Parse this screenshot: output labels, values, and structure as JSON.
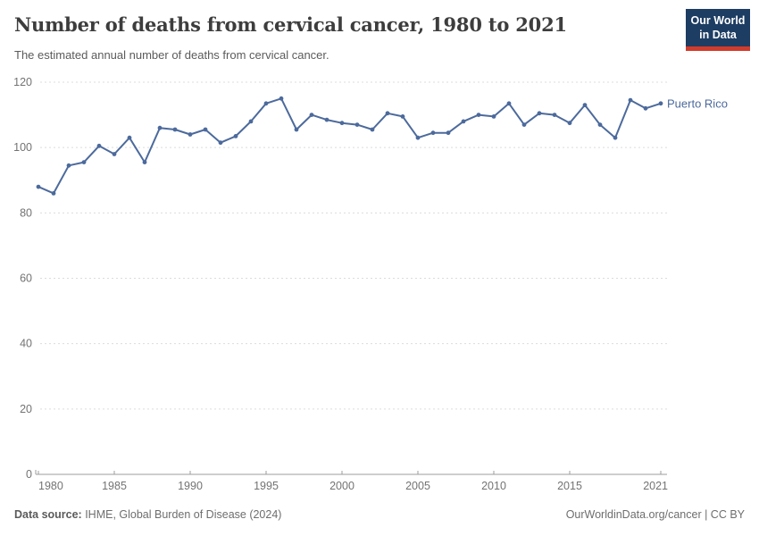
{
  "header": {
    "title": "Number of deaths from cervical cancer, 1980 to 2021",
    "subtitle": "The estimated annual number of deaths from cervical cancer.",
    "logo": {
      "line1": "Our World",
      "line2": "in Data"
    }
  },
  "chart_data": {
    "type": "line",
    "title": "Number of deaths from cervical cancer, 1980 to 2021",
    "xlabel": "",
    "ylabel": "",
    "xlim": [
      1980,
      2021
    ],
    "ylim": [
      0,
      120
    ],
    "grid": "horizontal-dashed",
    "legend_position": "end-of-line",
    "xticks": [
      1980,
      1985,
      1990,
      1995,
      2000,
      2005,
      2010,
      2015,
      2021
    ],
    "yticks": [
      0,
      20,
      40,
      60,
      80,
      100,
      120
    ],
    "series": [
      {
        "name": "Puerto Rico",
        "color": "#4c6a9c",
        "x": [
          1980,
          1981,
          1982,
          1983,
          1984,
          1985,
          1986,
          1987,
          1988,
          1989,
          1990,
          1991,
          1992,
          1993,
          1994,
          1995,
          1996,
          1997,
          1998,
          1999,
          2000,
          2001,
          2002,
          2003,
          2004,
          2005,
          2006,
          2007,
          2008,
          2009,
          2010,
          2011,
          2012,
          2013,
          2014,
          2015,
          2016,
          2017,
          2018,
          2019,
          2020,
          2021
        ],
        "values": [
          88,
          86,
          94.5,
          95.5,
          100.5,
          98,
          103,
          95.5,
          106,
          105.5,
          104,
          105.5,
          101.5,
          103.5,
          108,
          113.5,
          115,
          105.5,
          110,
          108.5,
          107.5,
          107,
          105.5,
          110.5,
          109.5,
          103,
          104.5,
          104.5,
          108,
          110,
          109.5,
          113.5,
          107,
          110.5,
          110,
          107.5,
          113,
          107,
          103,
          114.5,
          112,
          113.5
        ]
      }
    ]
  },
  "footer": {
    "source_label": "Data source:",
    "source_text": " IHME, Global Burden of Disease (2024)",
    "rights": "OurWorldinData.org/cancer | CC BY"
  },
  "colors": {
    "line": "#4c6a9c",
    "grid": "#dcdcdc",
    "axis": "#9e9e9e",
    "tick_text": "#737373",
    "title_text": "#3d3d3d",
    "subtitle_text": "#5b5b5b",
    "logo_bg": "#1d3d63",
    "logo_bar": "#d13b2b"
  }
}
